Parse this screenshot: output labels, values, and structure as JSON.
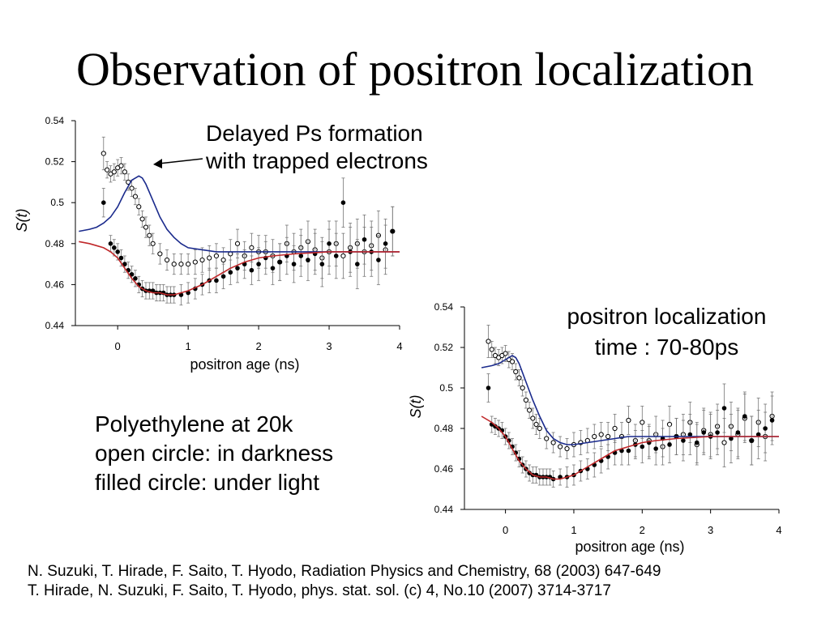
{
  "title": "Observation of positron localization",
  "annotations": {
    "delayed_ps": [
      "Delayed Ps formation",
      "with trapped electrons"
    ],
    "localization_time": [
      "positron localization",
      "time : 70-80ps"
    ]
  },
  "sample_info": [
    "Polyethylene at 20k",
    "open circle: in darkness",
    "filled circle: under light"
  ],
  "references": [
    "N. Suzuki, T. Hirade, F. Saito,  T. Hyodo, Radiation Physics and Chemistry, 68 (2003) 647-649",
    "T. Hirade, N. Suzuki, F. Saito, T. Hyodo, phys. stat. sol. (c) 4, No.10 (2007) 3714-3717"
  ],
  "colors": {
    "fit_dark": "#1a2a8c",
    "fit_light": "#c0282a"
  },
  "chart_data": [
    {
      "type": "scatter",
      "xlabel": "positron age (ns)",
      "ylabel": "S(t)",
      "xlim": [
        -0.6,
        4.0
      ],
      "ylim": [
        0.44,
        0.54
      ],
      "xticks": [
        "0",
        "1",
        "2",
        "3",
        "4"
      ],
      "yticks": [
        "0.44",
        "0.46",
        "0.48",
        "0.5",
        "0.52",
        "0.54"
      ],
      "series": [
        {
          "marker": "open-circle",
          "x": [
            -0.2,
            -0.15,
            -0.1,
            -0.05,
            0.0,
            0.05,
            0.1,
            0.15,
            0.2,
            0.25,
            0.3,
            0.35,
            0.4,
            0.45,
            0.5,
            0.6,
            0.7,
            0.8,
            0.9,
            1.0,
            1.1,
            1.2,
            1.3,
            1.4,
            1.5,
            1.6,
            1.7,
            1.8,
            1.9,
            2.0,
            2.1,
            2.2,
            2.3,
            2.4,
            2.5,
            2.6,
            2.7,
            2.8,
            2.9,
            3.0,
            3.1,
            3.2,
            3.3,
            3.4,
            3.5,
            3.6,
            3.7,
            3.8,
            3.9
          ],
          "y": [
            0.524,
            0.516,
            0.514,
            0.515,
            0.517,
            0.518,
            0.515,
            0.51,
            0.507,
            0.503,
            0.498,
            0.492,
            0.488,
            0.484,
            0.48,
            0.475,
            0.472,
            0.47,
            0.47,
            0.47,
            0.471,
            0.472,
            0.473,
            0.474,
            0.472,
            0.475,
            0.48,
            0.474,
            0.478,
            0.476,
            0.476,
            0.474,
            0.471,
            0.48,
            0.476,
            0.478,
            0.481,
            0.477,
            0.473,
            0.476,
            0.48,
            0.474,
            0.478,
            0.48,
            0.476,
            0.479,
            0.484,
            0.477,
            0.486
          ],
          "err": [
            0.008,
            0.004,
            0.004,
            0.004,
            0.004,
            0.004,
            0.004,
            0.004,
            0.004,
            0.004,
            0.004,
            0.004,
            0.005,
            0.005,
            0.005,
            0.005,
            0.005,
            0.005,
            0.005,
            0.005,
            0.006,
            0.006,
            0.006,
            0.006,
            0.006,
            0.007,
            0.007,
            0.007,
            0.007,
            0.008,
            0.008,
            0.008,
            0.009,
            0.009,
            0.009,
            0.009,
            0.01,
            0.01,
            0.01,
            0.011,
            0.011,
            0.011,
            0.012,
            0.012,
            0.012,
            0.012,
            0.012,
            0.012,
            0.012
          ]
        },
        {
          "marker": "filled-circle",
          "x": [
            -0.2,
            -0.1,
            -0.05,
            0.0,
            0.05,
            0.1,
            0.15,
            0.2,
            0.25,
            0.3,
            0.35,
            0.4,
            0.45,
            0.5,
            0.55,
            0.6,
            0.65,
            0.7,
            0.75,
            0.8,
            0.9,
            1.0,
            1.1,
            1.2,
            1.3,
            1.4,
            1.5,
            1.6,
            1.7,
            1.8,
            1.9,
            2.0,
            2.1,
            2.2,
            2.3,
            2.4,
            2.5,
            2.6,
            2.7,
            2.8,
            2.9,
            3.0,
            3.1,
            3.2,
            3.3,
            3.4,
            3.5,
            3.6,
            3.7,
            3.8,
            3.9
          ],
          "y": [
            0.5,
            0.48,
            0.478,
            0.476,
            0.473,
            0.47,
            0.467,
            0.465,
            0.463,
            0.46,
            0.458,
            0.457,
            0.457,
            0.457,
            0.456,
            0.456,
            0.456,
            0.455,
            0.455,
            0.455,
            0.455,
            0.456,
            0.458,
            0.46,
            0.462,
            0.462,
            0.464,
            0.466,
            0.468,
            0.47,
            0.467,
            0.47,
            0.473,
            0.468,
            0.471,
            0.474,
            0.47,
            0.474,
            0.472,
            0.475,
            0.47,
            0.48,
            0.474,
            0.5,
            0.476,
            0.47,
            0.482,
            0.476,
            0.472,
            0.48,
            0.486
          ],
          "err": [
            0.007,
            0.004,
            0.004,
            0.004,
            0.004,
            0.004,
            0.004,
            0.004,
            0.004,
            0.004,
            0.004,
            0.004,
            0.004,
            0.004,
            0.004,
            0.004,
            0.004,
            0.004,
            0.004,
            0.004,
            0.005,
            0.005,
            0.005,
            0.005,
            0.006,
            0.006,
            0.006,
            0.006,
            0.007,
            0.007,
            0.007,
            0.008,
            0.008,
            0.008,
            0.009,
            0.009,
            0.009,
            0.01,
            0.01,
            0.01,
            0.011,
            0.011,
            0.011,
            0.012,
            0.012,
            0.012,
            0.012,
            0.012,
            0.012,
            0.012,
            0.012
          ]
        }
      ],
      "fits": [
        {
          "color": "#1a2a8c",
          "x": [
            -0.55,
            -0.4,
            -0.3,
            -0.2,
            -0.1,
            0.0,
            0.1,
            0.2,
            0.3,
            0.35,
            0.4,
            0.5,
            0.6,
            0.7,
            0.8,
            0.9,
            1.0,
            1.2,
            1.4,
            1.6,
            1.8,
            2.0,
            2.5,
            3.0,
            3.5,
            4.0
          ],
          "y": [
            0.486,
            0.487,
            0.488,
            0.49,
            0.493,
            0.498,
            0.505,
            0.511,
            0.513,
            0.512,
            0.509,
            0.501,
            0.493,
            0.487,
            0.483,
            0.48,
            0.478,
            0.477,
            0.476,
            0.476,
            0.476,
            0.476,
            0.476,
            0.476,
            0.476,
            0.476
          ]
        },
        {
          "color": "#c0282a",
          "x": [
            -0.55,
            -0.4,
            -0.3,
            -0.2,
            -0.1,
            0.0,
            0.1,
            0.2,
            0.3,
            0.4,
            0.5,
            0.6,
            0.7,
            0.8,
            0.9,
            1.0,
            1.2,
            1.4,
            1.6,
            1.8,
            2.0,
            2.2,
            2.5,
            3.0,
            3.5,
            4.0
          ],
          "y": [
            0.481,
            0.48,
            0.479,
            0.478,
            0.476,
            0.473,
            0.468,
            0.463,
            0.459,
            0.457,
            0.456,
            0.456,
            0.455,
            0.455,
            0.456,
            0.457,
            0.46,
            0.464,
            0.468,
            0.471,
            0.473,
            0.474,
            0.475,
            0.476,
            0.476,
            0.476
          ]
        }
      ]
    },
    {
      "type": "scatter",
      "xlabel": "positron age (ns)",
      "ylabel": "S(t)",
      "xlim": [
        -0.6,
        4.0
      ],
      "ylim": [
        0.44,
        0.54
      ],
      "xticks": [
        "0",
        "1",
        "2",
        "3",
        "4"
      ],
      "yticks": [
        "0.44",
        "0.46",
        "0.48",
        "0.5",
        "0.52",
        "0.54"
      ],
      "series": [
        {
          "marker": "open-circle",
          "x": [
            -0.25,
            -0.2,
            -0.15,
            -0.1,
            -0.05,
            0.0,
            0.05,
            0.1,
            0.15,
            0.2,
            0.25,
            0.3,
            0.35,
            0.4,
            0.45,
            0.5,
            0.6,
            0.7,
            0.8,
            0.9,
            1.0,
            1.1,
            1.2,
            1.3,
            1.4,
            1.5,
            1.6,
            1.7,
            1.8,
            1.9,
            2.0,
            2.1,
            2.2,
            2.3,
            2.4,
            2.5,
            2.6,
            2.7,
            2.8,
            2.9,
            3.0,
            3.1,
            3.2,
            3.3,
            3.4,
            3.5,
            3.6,
            3.7,
            3.8,
            3.9
          ],
          "y": [
            0.523,
            0.519,
            0.516,
            0.515,
            0.516,
            0.517,
            0.514,
            0.513,
            0.508,
            0.505,
            0.5,
            0.494,
            0.489,
            0.485,
            0.482,
            0.48,
            0.475,
            0.473,
            0.471,
            0.47,
            0.472,
            0.473,
            0.474,
            0.476,
            0.477,
            0.476,
            0.48,
            0.476,
            0.484,
            0.474,
            0.483,
            0.474,
            0.477,
            0.471,
            0.482,
            0.476,
            0.477,
            0.483,
            0.472,
            0.479,
            0.477,
            0.481,
            0.473,
            0.481,
            0.477,
            0.485,
            0.474,
            0.483,
            0.476,
            0.486
          ],
          "err": [
            0.008,
            0.004,
            0.004,
            0.004,
            0.004,
            0.004,
            0.004,
            0.004,
            0.004,
            0.004,
            0.004,
            0.004,
            0.004,
            0.005,
            0.005,
            0.005,
            0.005,
            0.005,
            0.005,
            0.005,
            0.006,
            0.006,
            0.006,
            0.006,
            0.006,
            0.007,
            0.007,
            0.007,
            0.007,
            0.008,
            0.008,
            0.008,
            0.009,
            0.009,
            0.009,
            0.009,
            0.01,
            0.01,
            0.01,
            0.011,
            0.011,
            0.011,
            0.012,
            0.012,
            0.012,
            0.012,
            0.012,
            0.012,
            0.012,
            0.012
          ]
        },
        {
          "marker": "filled-circle",
          "x": [
            -0.25,
            -0.2,
            -0.15,
            -0.1,
            -0.05,
            0.0,
            0.05,
            0.1,
            0.15,
            0.2,
            0.25,
            0.3,
            0.35,
            0.4,
            0.45,
            0.5,
            0.55,
            0.6,
            0.65,
            0.7,
            0.8,
            0.9,
            1.0,
            1.1,
            1.2,
            1.3,
            1.4,
            1.5,
            1.6,
            1.7,
            1.8,
            1.9,
            2.0,
            2.1,
            2.2,
            2.3,
            2.4,
            2.5,
            2.6,
            2.7,
            2.8,
            2.9,
            3.0,
            3.1,
            3.2,
            3.3,
            3.4,
            3.5,
            3.6,
            3.7,
            3.8,
            3.9
          ],
          "y": [
            0.5,
            0.482,
            0.481,
            0.48,
            0.479,
            0.476,
            0.474,
            0.471,
            0.468,
            0.465,
            0.462,
            0.46,
            0.458,
            0.457,
            0.457,
            0.456,
            0.456,
            0.456,
            0.456,
            0.455,
            0.456,
            0.456,
            0.457,
            0.459,
            0.46,
            0.462,
            0.464,
            0.466,
            0.468,
            0.469,
            0.469,
            0.472,
            0.471,
            0.473,
            0.47,
            0.475,
            0.472,
            0.476,
            0.474,
            0.477,
            0.473,
            0.478,
            0.476,
            0.478,
            0.49,
            0.475,
            0.478,
            0.486,
            0.474,
            0.477,
            0.48,
            0.484
          ],
          "err": [
            0.007,
            0.004,
            0.004,
            0.004,
            0.004,
            0.004,
            0.004,
            0.004,
            0.004,
            0.004,
            0.004,
            0.004,
            0.004,
            0.004,
            0.004,
            0.004,
            0.004,
            0.004,
            0.004,
            0.004,
            0.004,
            0.005,
            0.005,
            0.005,
            0.005,
            0.006,
            0.006,
            0.006,
            0.006,
            0.007,
            0.007,
            0.007,
            0.008,
            0.008,
            0.008,
            0.009,
            0.009,
            0.009,
            0.01,
            0.01,
            0.01,
            0.011,
            0.011,
            0.011,
            0.012,
            0.012,
            0.012,
            0.012,
            0.012,
            0.012,
            0.012,
            0.012
          ]
        }
      ],
      "fits": [
        {
          "color": "#1a2a8c",
          "x": [
            -0.35,
            -0.2,
            -0.1,
            0.0,
            0.1,
            0.15,
            0.2,
            0.3,
            0.4,
            0.5,
            0.6,
            0.7,
            0.8,
            0.9,
            1.0,
            1.2,
            1.4,
            1.6,
            1.8,
            2.0,
            2.5,
            3.0,
            3.5,
            4.0
          ],
          "y": [
            0.51,
            0.511,
            0.512,
            0.514,
            0.516,
            0.515,
            0.512,
            0.503,
            0.494,
            0.486,
            0.479,
            0.475,
            0.473,
            0.472,
            0.472,
            0.473,
            0.474,
            0.475,
            0.476,
            0.476,
            0.476,
            0.476,
            0.476,
            0.476
          ]
        },
        {
          "color": "#c0282a",
          "x": [
            -0.35,
            -0.2,
            -0.1,
            0.0,
            0.1,
            0.2,
            0.3,
            0.4,
            0.5,
            0.6,
            0.7,
            0.8,
            0.9,
            1.0,
            1.2,
            1.4,
            1.6,
            1.8,
            2.0,
            2.2,
            2.5,
            3.0,
            3.5,
            4.0
          ],
          "y": [
            0.486,
            0.483,
            0.48,
            0.476,
            0.47,
            0.464,
            0.46,
            0.457,
            0.456,
            0.456,
            0.455,
            0.455,
            0.456,
            0.457,
            0.461,
            0.465,
            0.469,
            0.471,
            0.473,
            0.474,
            0.475,
            0.476,
            0.476,
            0.476
          ]
        }
      ]
    }
  ]
}
